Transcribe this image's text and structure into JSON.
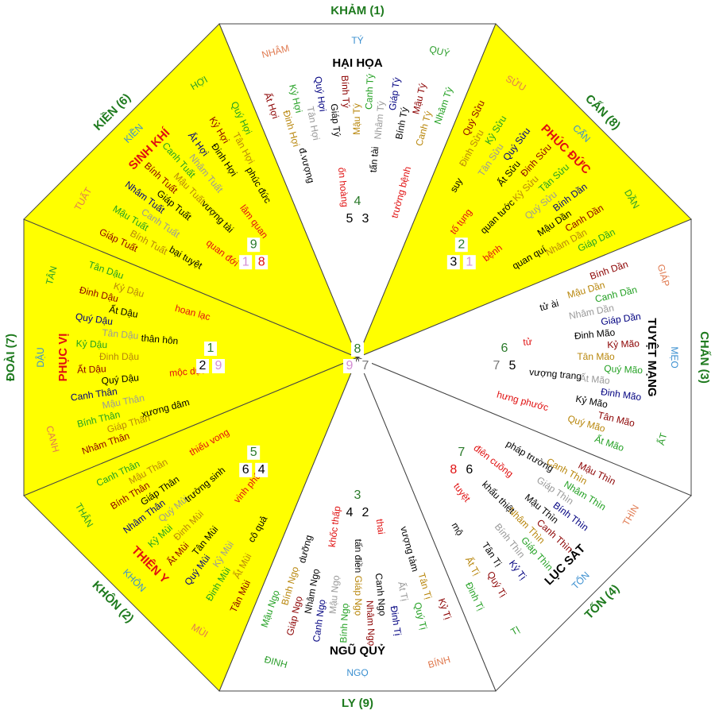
{
  "center": {
    "top": "8",
    "left": "9",
    "right": "7",
    "colors": [
      "#2a7a2a",
      "#d48fd4",
      "#777777"
    ]
  },
  "ring_colors": [
    "#8b0000",
    "#b8860b",
    "#22a022",
    "#999999",
    "#000080",
    "#000000"
  ],
  "sectors": [
    {
      "label": "KHẢM (1)",
      "mountains": [
        "NHÂM",
        "TÝ",
        "QUÝ"
      ],
      "mountain_colors": [
        "#e07a50",
        "#3a8fd0",
        "#2a9d2a"
      ],
      "star": "HẠI HỌA",
      "star_color": "#000000",
      "fill": "#ffffff",
      "numbers": [
        "4",
        "5",
        "3"
      ],
      "number_colors": [
        "#2a7a2a",
        "#000000",
        "#000000"
      ],
      "terms": [
        "đ.vượng",
        "ốn hoàng",
        "tấn tài",
        "trường bệnh"
      ],
      "ring": [
        "Ất Hợi",
        "Đinh Hợi",
        "Kỷ Hợi",
        "Tân Hợi",
        "Quý Hợi",
        "Giáp Tý",
        "Bính Tý",
        "Mậu Tý",
        "Canh Tý",
        "Nhâm Tý",
        "Giáp Tý",
        "Bính Tý",
        "Mậu Tý",
        "Canh Tý",
        "Nhâm Tý"
      ]
    },
    {
      "label": "CẤN (8)",
      "mountains": [
        "SỬU",
        "CẤN",
        "DẦN"
      ],
      "mountain_colors": [
        "#e07a50",
        "#3a8fd0",
        "#2a9d2a"
      ],
      "star": "PHÚC ĐỨC",
      "star_color": "#e01010",
      "fill": "#ffff00",
      "numbers": [
        "2",
        "3",
        "1"
      ],
      "number_colors": [
        "#2a7a2a",
        "#000000",
        "#d48fd4"
      ],
      "terms": [
        "suy",
        "tố tụng",
        "quan tước",
        "bệnh",
        "quan quí"
      ],
      "ring": [
        "Quý Sửu",
        "Đinh Sửu",
        "Kỷ Sửu",
        "Tân Sửu",
        "Quý Sửu",
        "Ất Sửu",
        "Đinh Sửu",
        "Kỷ Sửu",
        "Tân Sửu",
        "Quý Sửu",
        "Bính Dần",
        "Mậu Dần",
        "Canh Dần",
        "Nhâm Dần",
        "Giáp Dần"
      ]
    },
    {
      "label": "CHẤN (3)",
      "mountains": [
        "GIÁP",
        "MẸO",
        "ẤT"
      ],
      "mountain_colors": [
        "#e07a50",
        "#3a8fd0",
        "#2a9d2a"
      ],
      "star": "TUYỆT MẠNG",
      "star_color": "#000000",
      "fill": "#ffffff",
      "numbers": [
        "6",
        "7",
        "5"
      ],
      "number_colors": [
        "#2a7a2a",
        "#777777",
        "#000000"
      ],
      "terms": [
        "tử ài",
        "tử",
        "vượng trang",
        "hưng phước"
      ],
      "ring": [
        "Bính Dần",
        "Mậu Dần",
        "Canh Dần",
        "Nhâm Dần",
        "Giáp Dần",
        "Đinh Mão",
        "Kỷ Mão",
        "Tân Mão",
        "Quý Mão",
        "Ất Mão",
        "Đinh Mão",
        "Kỷ Mão",
        "Tân Mão",
        "Quý Mão",
        "Ất Mão"
      ]
    },
    {
      "label": "TỐN (4)",
      "mountains": [
        "THÌN",
        "TỐN",
        "TỊ"
      ],
      "mountain_colors": [
        "#e07a50",
        "#3a8fd0",
        "#2a9d2a"
      ],
      "star": "LỤC SÁT",
      "star_color": "#000000",
      "fill": "#ffffff",
      "numbers": [
        "7",
        "8",
        "6"
      ],
      "number_colors": [
        "#2a7a2a",
        "#e01010",
        "#000000"
      ],
      "terms": [
        "pháp trường",
        "điên cuồng",
        "khẩu thiệt",
        "tuyệt",
        "mộ"
      ],
      "ring": [
        "Mậu Thìn",
        "Canh Thìn",
        "Nhâm Thìn",
        "Giáp Thìn",
        "Bính Thìn",
        "Mậu Thìn",
        "Canh Thìn",
        "Nhâm Thìn",
        "Giáp Thìn",
        "Bính Thìn",
        "Kỷ Tị",
        "Tân Tị",
        "Quý Tị",
        "Ất Tị",
        "Đinh Tị"
      ]
    },
    {
      "label": "LY (9)",
      "mountains": [
        "BÍNH",
        "NGỌ",
        "ĐINH"
      ],
      "mountain_colors": [
        "#e07a50",
        "#3a8fd0",
        "#2a9d2a"
      ],
      "star": "NGŨ QUỶ",
      "star_color": "#000000",
      "fill": "#ffffff",
      "numbers": [
        "3",
        "4",
        "2"
      ],
      "number_colors": [
        "#2a7a2a",
        "#000000",
        "#000000"
      ],
      "terms": [
        "vượng tàm",
        "thai",
        "tấn điền",
        "khốc thấp",
        "dưỡng"
      ],
      "ring": [
        "Kỷ Tị",
        "Tân Tị",
        "Quý Tị",
        "Ất Tị",
        "Đinh Tị",
        "Canh Ngọ",
        "Nhâm Ngọ",
        "Giáp Ngọ",
        "Bính Ngọ",
        "Mậu Ngọ",
        "Canh Ngọ",
        "Nhâm Ngọ",
        "Giáp Ngọ",
        "Bính Ngọ",
        "Mậu Ngọ"
      ]
    },
    {
      "label": "KHÔN (2)",
      "mountains": [
        "MÙI",
        "KHÔN",
        "THÂN"
      ],
      "mountain_colors": [
        "#e07a50",
        "#3a8fd0",
        "#2a9d2a"
      ],
      "star": "THIÊN Y",
      "star_color": "#e01010",
      "fill": "#ffff00",
      "numbers": [
        "5",
        "6",
        "4"
      ],
      "number_colors": [
        "#2a7a2a",
        "#000000",
        "#000000"
      ],
      "terms": [
        "cô quả",
        "vinh phú",
        "trường sinh",
        "thiếu vong"
      ],
      "ring": [
        "Tân Mùi",
        "Ất Mùi",
        "Đinh Mùi",
        "Kỷ Mùi",
        "Quý Mùi",
        "Tân Mùi",
        "Ất Mùi",
        "Đinh Mùi",
        "Kỷ Mùi",
        "Quý Mùi",
        "Nhâm Thân",
        "Giáp Thân",
        "Bính Thân",
        "Mậu Thân",
        "Canh Thân"
      ]
    },
    {
      "label": "ĐOÀI (7)",
      "mountains": [
        "CANH",
        "DẬU",
        "TÂN"
      ],
      "mountain_colors": [
        "#e07a50",
        "#3a8fd0",
        "#2a9d2a"
      ],
      "star": "PHỤC VỊ",
      "star_color": "#e01010",
      "fill": "#ffff00",
      "numbers": [
        "1",
        "2",
        "9"
      ],
      "number_colors": [
        "#2a7a2a",
        "#000000",
        "#d48fd4"
      ],
      "terms": [
        "xương dâm",
        "mộc dục",
        "thân hôn",
        "hoan lạc"
      ],
      "ring": [
        "Nhâm Thân",
        "Giáp Thân",
        "Bính Thân",
        "Mậu Thân",
        "Canh Thân",
        "Quý Dậu",
        "Ất Dậu",
        "Đinh Dậu",
        "Kỷ Dậu",
        "Tân Dậu",
        "Quý Dậu",
        "Ất Dậu",
        "Đinh Dậu",
        "Kỷ Dậu",
        "Tân Dậu"
      ]
    },
    {
      "label": "KIỀN (6)",
      "mountains": [
        "TUẤT",
        "KIỀN",
        "HỢI"
      ],
      "mountain_colors": [
        "#e07a50",
        "#3a8fd0",
        "#2a9d2a"
      ],
      "star": "SINH KHÍ",
      "star_color": "#e01010",
      "fill": "#ffff00",
      "numbers": [
        "9",
        "1",
        "8"
      ],
      "number_colors": [
        "#2a7a2a",
        "#d48fd4",
        "#e01010"
      ],
      "terms": [
        "bại tuyệt",
        "quan đới",
        "vượng tài",
        "lâm quan",
        "phúc đức"
      ],
      "ring": [
        "Giáp Tuất",
        "Bính Tuất",
        "Mậu Tuất",
        "Canh Tuất",
        "Nhâm Tuất",
        "Giáp Tuất",
        "Bính Tuất",
        "Mậu Tuất",
        "Canh Tuất",
        "Nhâm Tuất",
        "Ất Hợi",
        "Đinh Hợi",
        "Kỷ Hợi",
        "Tân Hợi",
        "Quý Hợi"
      ]
    }
  ]
}
